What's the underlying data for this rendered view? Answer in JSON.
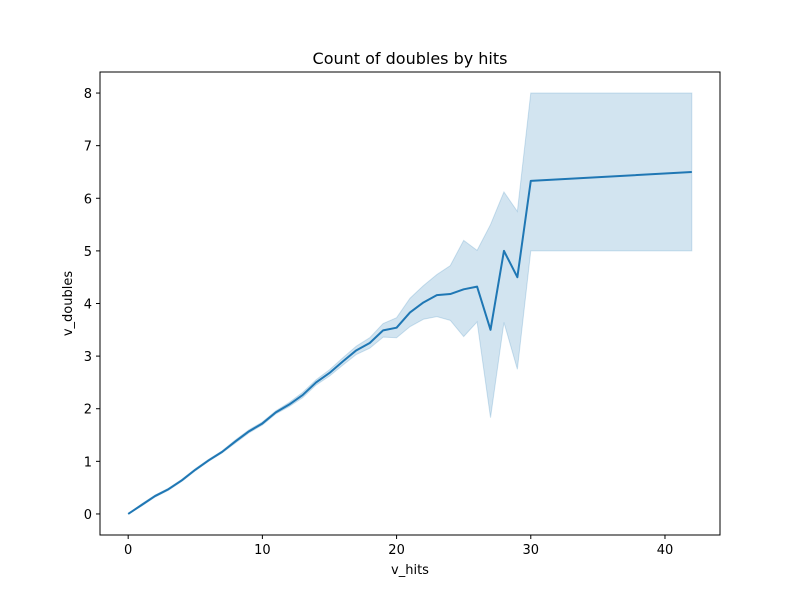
{
  "chart_data": {
    "type": "line",
    "title": "Count of doubles by hits",
    "xlabel": "v_hits",
    "ylabel": "v_doubles",
    "xlim": [
      -2.1,
      44.1
    ],
    "ylim": [
      -0.4,
      8.4
    ],
    "x_ticks": [
      0,
      10,
      20,
      30,
      40
    ],
    "y_ticks": [
      0,
      1,
      2,
      3,
      4,
      5,
      6,
      7,
      8
    ],
    "grid": false,
    "line_color": "#1f77b4",
    "band_color": "#1f77b4",
    "series": [
      {
        "x": [
          0,
          1,
          2,
          3,
          4,
          5,
          6,
          7,
          8,
          9,
          10,
          11,
          12,
          13,
          14,
          15,
          16,
          17,
          18,
          19,
          20,
          21,
          22,
          23,
          24,
          25,
          26,
          27,
          28,
          29,
          30,
          42
        ],
        "values": [
          0.0,
          0.17,
          0.34,
          0.47,
          0.64,
          0.84,
          1.02,
          1.18,
          1.38,
          1.57,
          1.72,
          1.93,
          2.08,
          2.26,
          2.5,
          2.68,
          2.9,
          3.11,
          3.25,
          3.49,
          3.54,
          3.83,
          4.02,
          4.16,
          4.18,
          4.27,
          4.32,
          3.5,
          5.0,
          4.5,
          6.33,
          6.5
        ],
        "lower": [
          0.0,
          0.15,
          0.32,
          0.45,
          0.62,
          0.82,
          1.0,
          1.16,
          1.35,
          1.54,
          1.69,
          1.9,
          2.04,
          2.21,
          2.45,
          2.62,
          2.83,
          3.03,
          3.15,
          3.36,
          3.35,
          3.56,
          3.7,
          3.75,
          3.68,
          3.37,
          3.65,
          1.83,
          3.64,
          2.75,
          5.0,
          5.0
        ],
        "upper": [
          0.0,
          0.19,
          0.36,
          0.49,
          0.66,
          0.86,
          1.04,
          1.2,
          1.41,
          1.6,
          1.75,
          1.96,
          2.12,
          2.31,
          2.55,
          2.74,
          2.97,
          3.19,
          3.35,
          3.62,
          3.73,
          4.1,
          4.34,
          4.55,
          4.72,
          5.2,
          5.01,
          5.5,
          6.12,
          5.75,
          8.0,
          8.0
        ]
      }
    ]
  }
}
